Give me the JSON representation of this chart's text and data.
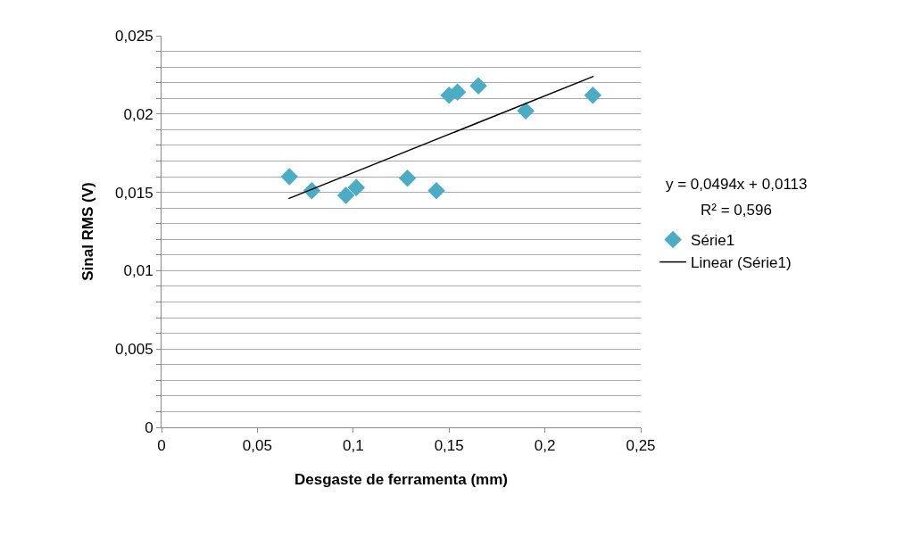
{
  "chart_data": {
    "type": "scatter",
    "xlabel": "Desgaste de ferramenta (mm)",
    "ylabel": "Sinal RMS (V)",
    "annotations": [
      "y = 0,0494x + 0,0113",
      "R² = 0,596"
    ],
    "series": [
      {
        "name": "Série1",
        "color": "#4bacc6",
        "marker": "diamond",
        "x": [
          0.0667,
          0.0784,
          0.0962,
          0.1016,
          0.1283,
          0.1434,
          0.15,
          0.1544,
          0.1653,
          0.19,
          0.225
        ],
        "values": [
          0.016,
          0.0151,
          0.0148,
          0.0153,
          0.0159,
          0.0151,
          0.0212,
          0.0214,
          0.0218,
          0.0202,
          0.0212
        ]
      },
      {
        "name": "Linear (Série1)",
        "type": "line",
        "color": "#000000",
        "marker": "none",
        "line_style": "solid",
        "x": [
          0.0663,
          0.2253
        ],
        "values": [
          0.0146,
          0.0224
        ]
      }
    ],
    "xlim": [
      0,
      0.25
    ],
    "ylim": [
      0,
      0.025
    ],
    "xticks": [
      0,
      {
        "value": 0.05,
        "label": "0,05"
      },
      {
        "value": 0.1,
        "label": "0,1"
      },
      {
        "value": 0.15,
        "label": "0,15"
      },
      {
        "value": 0.2,
        "label": "0,2"
      },
      {
        "value": 0.25,
        "label": "0,25"
      }
    ],
    "yticks": [
      0,
      {
        "value": 0.001,
        "label": null
      },
      {
        "value": 0.002,
        "label": null
      },
      {
        "value": 0.003,
        "label": null
      },
      {
        "value": 0.004,
        "label": null
      },
      {
        "value": 0.005,
        "label": "0,005"
      },
      {
        "value": 0.006,
        "label": null
      },
      {
        "value": 0.007,
        "label": null
      },
      {
        "value": 0.008,
        "label": null
      },
      {
        "value": 0.009,
        "label": null
      },
      {
        "value": 0.01,
        "label": "0,01"
      },
      {
        "value": 0.011,
        "label": null
      },
      {
        "value": 0.012,
        "label": null
      },
      {
        "value": 0.013,
        "label": null
      },
      {
        "value": 0.014,
        "label": null
      },
      {
        "value": 0.015,
        "label": "0,015"
      },
      {
        "value": 0.016,
        "label": null
      },
      {
        "value": 0.017,
        "label": null
      },
      {
        "value": 0.018,
        "label": null
      },
      {
        "value": 0.019,
        "label": null
      },
      {
        "value": 0.02,
        "label": "0,02"
      },
      {
        "value": 0.021,
        "label": null
      },
      {
        "value": 0.022,
        "label": null
      },
      {
        "value": 0.023,
        "label": null
      },
      {
        "value": 0.024,
        "label": null
      },
      {
        "value": 0.025,
        "label": "0,025"
      }
    ],
    "grid": "y",
    "legend": "right"
  }
}
